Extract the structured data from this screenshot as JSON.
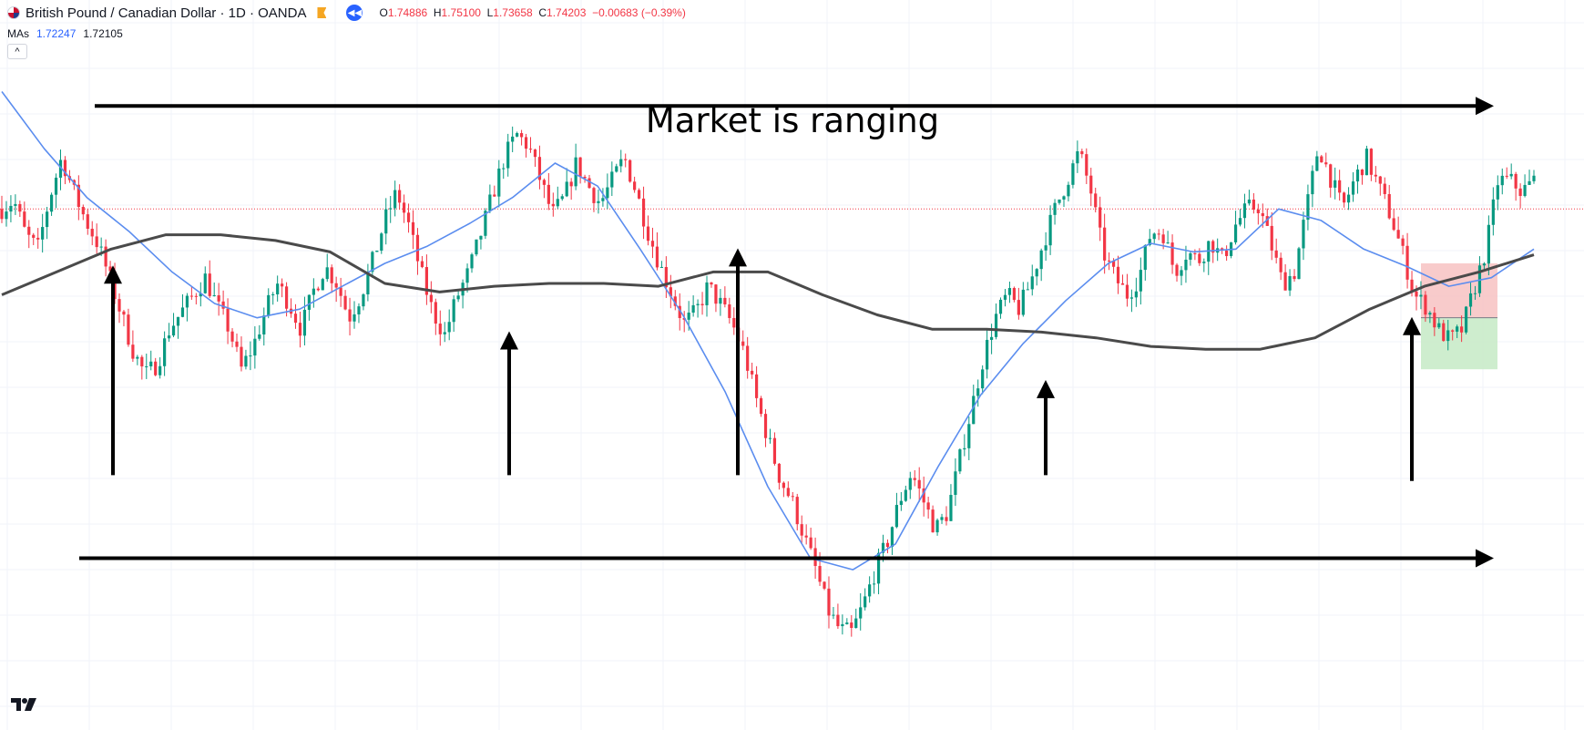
{
  "header": {
    "symbol": "British Pound / Canadian Dollar · 1D · OANDA",
    "open": "1.74886",
    "high": "1.75100",
    "low": "1.73658",
    "close": "1.74203",
    "change": "−0.00683 (−0.39%)",
    "labels": {
      "o": "O",
      "h": "H",
      "l": "L",
      "c": "C"
    },
    "ma_label": "MAs",
    "ma1_value": "1.72247",
    "ma2_value": "1.72105",
    "collapse_glyph": "^"
  },
  "chart_data": {
    "type": "candlestick",
    "title": "Market is ranging",
    "ylim": [
      1.56,
      1.815
    ],
    "current_price": 1.74203,
    "colors": {
      "up": "#089981",
      "down": "#f23645",
      "ma_fast": "#5b8def",
      "ma_slow": "#4a4a4a",
      "annotation": "#000000",
      "stop_zone": "#f7c2c2",
      "target_zone": "#c9ebc9"
    },
    "price_anchors": [
      1.742,
      1.745,
      1.733,
      1.728,
      1.746,
      1.76,
      1.748,
      1.738,
      1.73,
      1.718,
      1.705,
      1.692,
      1.684,
      1.688,
      1.7,
      1.706,
      1.712,
      1.718,
      1.708,
      1.7,
      1.686,
      1.694,
      1.706,
      1.716,
      1.709,
      1.7,
      1.713,
      1.722,
      1.716,
      1.704,
      1.712,
      1.724,
      1.738,
      1.748,
      1.736,
      1.72,
      1.706,
      1.698,
      1.711,
      1.72,
      1.733,
      1.747,
      1.76,
      1.768,
      1.764,
      1.752,
      1.74,
      1.746,
      1.758,
      1.75,
      1.744,
      1.752,
      1.76,
      1.748,
      1.734,
      1.722,
      1.712,
      1.702,
      1.706,
      1.715,
      1.709,
      1.702,
      1.692,
      1.676,
      1.662,
      1.648,
      1.64,
      1.628,
      1.616,
      1.602,
      1.595,
      1.594,
      1.604,
      1.616,
      1.626,
      1.64,
      1.65,
      1.64,
      1.63,
      1.636,
      1.654,
      1.672,
      1.69,
      1.704,
      1.712,
      1.707,
      1.717,
      1.73,
      1.742,
      1.752,
      1.762,
      1.748,
      1.727,
      1.718,
      1.712,
      1.718,
      1.734,
      1.734,
      1.72,
      1.727,
      1.724,
      1.731,
      1.724,
      1.736,
      1.742,
      1.743,
      1.73,
      1.716,
      1.72,
      1.742,
      1.764,
      1.753,
      1.742,
      1.752,
      1.76,
      1.75,
      1.74,
      1.727,
      1.712,
      1.708,
      1.7,
      1.696,
      1.7,
      1.714,
      1.728,
      1.752,
      1.752,
      1.748,
      1.752
    ],
    "ma_fast": [
      [
        1.783,
        1.763,
        1.746,
        1.734,
        1.72,
        1.709,
        1.704,
        1.707,
        1.715,
        1.723,
        1.729,
        1.737,
        1.746,
        1.758,
        1.75,
        1.728,
        1.705,
        1.678,
        1.645,
        1.62,
        1.616,
        1.625,
        1.652,
        1.677,
        1.695,
        1.71,
        1.723,
        1.73,
        1.727,
        1.728,
        1.742,
        1.738,
        1.728,
        1.722,
        1.715,
        1.718,
        1.728
      ],
      "fraction_of_width_per_point"
    ],
    "ma_slow": [
      1.712,
      1.72,
      1.728,
      1.733,
      1.733,
      1.731,
      1.727,
      1.716,
      1.713,
      1.715,
      1.716,
      1.716,
      1.715,
      1.72,
      1.72,
      1.712,
      1.705,
      1.7,
      1.7,
      1.699,
      1.697,
      1.694,
      1.693,
      1.693,
      1.697,
      1.707,
      1.715,
      1.72,
      1.726
    ],
    "stop_zone": {
      "price_top": 1.723,
      "price_bottom": 1.704
    },
    "target_zone": {
      "price_top": 1.704,
      "price_bottom": 1.686
    },
    "support_line": 1.62,
    "resistance_line": 1.778
  },
  "logo": {
    "name": "tradingview-logo"
  }
}
